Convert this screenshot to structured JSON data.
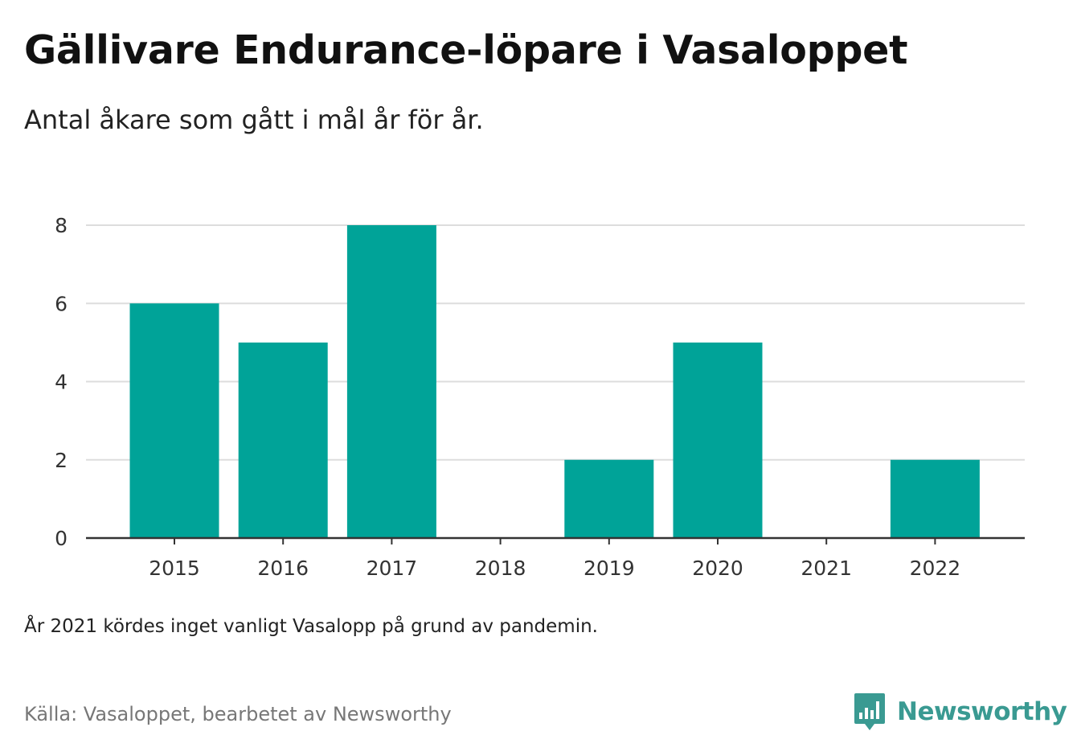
{
  "header": {
    "title": "Gällivare Endurance-löpare i Vasaloppet",
    "subtitle": "Antal åkare som gått i mål år för år."
  },
  "chart_data": {
    "type": "bar",
    "categories": [
      "2015",
      "2016",
      "2017",
      "2018",
      "2019",
      "2020",
      "2021",
      "2022"
    ],
    "values": [
      6,
      5,
      8,
      0,
      2,
      5,
      0,
      2
    ],
    "yticks": [
      0,
      2,
      4,
      6,
      8
    ],
    "ylim": [
      0,
      8
    ],
    "xlabel": "",
    "ylabel": "",
    "grid": true,
    "bar_color": "#00a398"
  },
  "footer": {
    "note": "År 2021 kördes inget vanligt Vasalopp på grund av pandemin.",
    "source": "Källa: Vasaloppet, bearbetet av Newsworthy"
  },
  "brand": {
    "name": "Newsworthy",
    "icon": "newsworthy-logo-icon",
    "color": "#3a9a92"
  }
}
